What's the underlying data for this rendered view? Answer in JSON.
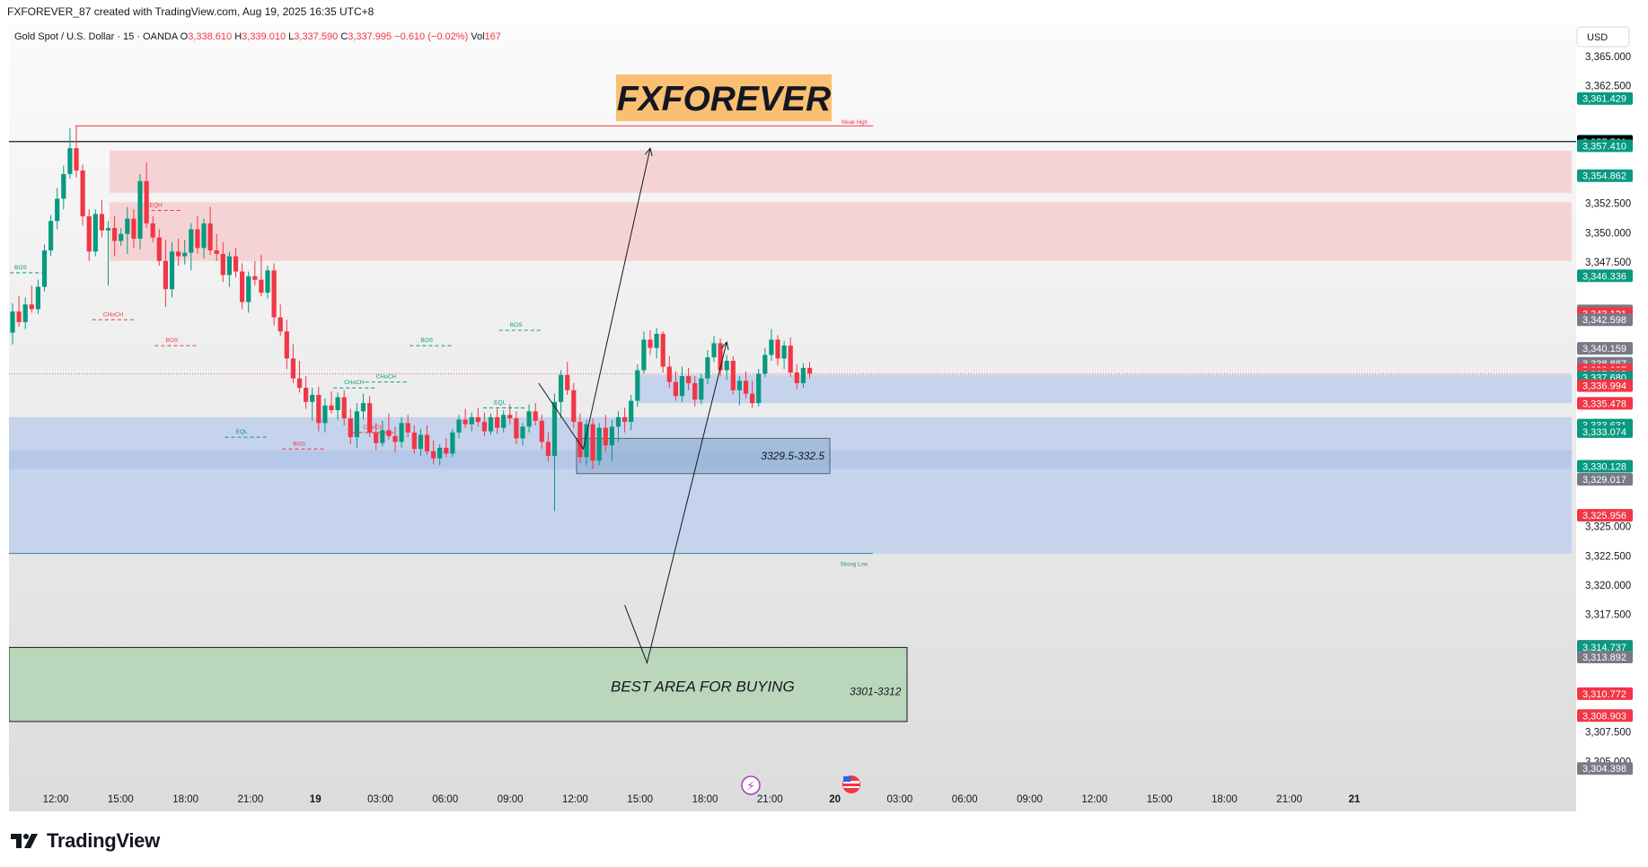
{
  "topbar": {
    "caption": "FXFOREVER_87 created with TradingView.com, Aug 19, 2025 16:35 UTC+8"
  },
  "legend": {
    "symbol": "Gold Spot / U.S. Dollar · 15 · OANDA",
    "open_label": "O",
    "open": "3,338.610",
    "high_label": "H",
    "high": "3,339.010",
    "low_label": "L",
    "low": "3,337.590",
    "close_label": "C",
    "close": "3,337.995",
    "change": "−0.610 (−0.02%)",
    "vol_label": "Vol",
    "vol": "167"
  },
  "currency_button": "USD",
  "watermark": {
    "text": "FXFOREVER",
    "bg": "#fbbf72"
  },
  "annotations": {
    "weak_high": "Weak High",
    "strong_low": "Strong Low",
    "box_label": "3329.5-332.5",
    "buy_area": "BEST AREA FOR BUYING",
    "buy_range": "3301-3312"
  },
  "structure_labels": [
    {
      "text": "BOS",
      "price": 3346.9,
      "time": 0.3,
      "color": "#089981"
    },
    {
      "text": "CHoCH",
      "price": 3342.9,
      "time": 14.2,
      "color": "#f23645"
    },
    {
      "text": "EQH",
      "price": 3352.2,
      "time": 21.5,
      "color": "#f23645"
    },
    {
      "text": "BOS",
      "price": 3340.7,
      "time": 24.0,
      "color": "#f23645"
    },
    {
      "text": "EQL",
      "price": 3332.9,
      "time": 35.0,
      "color": "#089981"
    },
    {
      "text": "BOS",
      "price": 3331.9,
      "time": 44.0,
      "color": "#f23645"
    },
    {
      "text": "CHoCH",
      "price": 3337.1,
      "time": 52.0,
      "color": "#089981"
    },
    {
      "text": "CHoCH",
      "price": 3337.6,
      "time": 57.0,
      "color": "#089981"
    },
    {
      "text": "CHoCH",
      "price": 3333.3,
      "time": 55.0,
      "color": "#f23645"
    },
    {
      "text": "BOS",
      "price": 3340.7,
      "time": 64.0,
      "color": "#089981"
    },
    {
      "text": "BOS",
      "price": 3342.0,
      "time": 78.0,
      "color": "#089981"
    },
    {
      "text": "EQL",
      "price": 3335.4,
      "time": 75.5,
      "color": "#089981"
    }
  ],
  "icons": [
    "lightning-icon",
    "us-flag-icon",
    "tradingview-logo-icon"
  ],
  "brand": "TradingView",
  "colors": {
    "bull": "#089981",
    "bear": "#f23645",
    "supply_zone": "#f5d3d4",
    "demand_zone": "#c4d2ec",
    "demand_zone_dark": "#a9c0ea",
    "buy_zone": "#bbd7bb",
    "current_price_label": "#f23645",
    "crosshair_label": "#000000"
  },
  "chart_data": {
    "type": "candlestick",
    "symbol": "XAUUSD",
    "timeframe": "15",
    "ylim": [
      3303.5,
      3365.0
    ],
    "yticks": [
      "3,365.000",
      "3,362.500",
      "3,352.500",
      "3,350.000",
      "3,347.500",
      "3,325.000",
      "3,322.500",
      "3,320.000",
      "3,317.500",
      "3,307.500",
      "3,305.000"
    ],
    "xticks": [
      "12:00",
      "15:00",
      "18:00",
      "21:00",
      "19",
      "03:00",
      "06:00",
      "09:00",
      "12:00",
      "15:00",
      "18:00",
      "21:00",
      "20",
      "03:00",
      "06:00",
      "09:00",
      "12:00",
      "15:00",
      "18:00",
      "21:00",
      "21"
    ],
    "price_labels": [
      {
        "value": "3,361.429",
        "color": "#089981"
      },
      {
        "value": "3,357.799",
        "color": "#089981"
      },
      {
        "value": "3,357.761",
        "color": "#000000"
      },
      {
        "value": "3,357.410",
        "color": "#089981"
      },
      {
        "value": "3,354.862",
        "color": "#089981"
      },
      {
        "value": "3,346.336",
        "color": "#089981"
      },
      {
        "value": "3,343.355",
        "color": "#787b86"
      },
      {
        "value": "3,343.121",
        "color": "#f23645"
      },
      {
        "value": "3,342.598",
        "color": "#787b86"
      },
      {
        "value": "3,340.159",
        "color": "#787b86"
      },
      {
        "value": "3,338.887",
        "color": "#787b86"
      },
      {
        "value": "3,338.327",
        "color": "#f23645"
      },
      {
        "value": "3,337.995",
        "color": "#f23645"
      },
      {
        "value": "3,337.680",
        "color": "#089981"
      },
      {
        "value": "3,336.994",
        "color": "#f23645"
      },
      {
        "value": "3,335.478",
        "color": "#f23645"
      },
      {
        "value": "3,333.631",
        "color": "#089981"
      },
      {
        "value": "3,333.074",
        "color": "#089981"
      },
      {
        "value": "3,330.128",
        "color": "#089981"
      },
      {
        "value": "3,329.017",
        "color": "#787b86"
      },
      {
        "value": "3,325.956",
        "color": "#f23645"
      },
      {
        "value": "3,314.810",
        "color": "#787b86"
      },
      {
        "value": "3,314.737",
        "color": "#089981"
      },
      {
        "value": "3,313.892",
        "color": "#787b86"
      },
      {
        "value": "3,310.772",
        "color": "#f23645"
      },
      {
        "value": "3,308.903",
        "color": "#f23645"
      },
      {
        "value": "3,304.398",
        "color": "#787b86"
      }
    ],
    "countdown": "09:53",
    "current_price": 3337.995,
    "horizontal_line": 3357.761,
    "zones": [
      {
        "kind": "supply",
        "low": 3353.4,
        "high": 3357.0
      },
      {
        "kind": "supply",
        "low": 3347.6,
        "high": 3352.6
      },
      {
        "kind": "demand",
        "low": 3335.5,
        "high": 3337.9
      },
      {
        "kind": "demand",
        "low": 3322.7,
        "high": 3334.3
      },
      {
        "kind": "demand",
        "low": 3329.9,
        "high": 3331.5
      },
      {
        "kind": "entry_box",
        "low": 3329.5,
        "high": 3332.5
      },
      {
        "kind": "buy",
        "low": 3301,
        "high": 3312
      }
    ],
    "projection_points": [
      [
        82.5,
        3337.2
      ],
      [
        89.5,
        3331.6
      ],
      [
        100.0,
        3357.2
      ],
      [
        96.0,
        3318.3
      ],
      [
        99.5,
        3313.4
      ],
      [
        112.0,
        3340.7
      ]
    ],
    "candles": [
      [
        3341.5,
        3344.0,
        3340.5,
        3343.3
      ],
      [
        3343.3,
        3344.6,
        3342.0,
        3342.4
      ],
      [
        3342.4,
        3344.5,
        3341.8,
        3343.9
      ],
      [
        3343.9,
        3345.5,
        3343.2,
        3343.5
      ],
      [
        3343.5,
        3346.0,
        3343.1,
        3345.4
      ],
      [
        3345.4,
        3349.0,
        3345.0,
        3348.5
      ],
      [
        3348.5,
        3351.5,
        3348.0,
        3351.0
      ],
      [
        3351.0,
        3353.8,
        3350.3,
        3352.9
      ],
      [
        3352.9,
        3355.7,
        3352.0,
        3355.0
      ],
      [
        3355.0,
        3358.9,
        3354.6,
        3357.2
      ],
      [
        3357.2,
        3359.1,
        3354.7,
        3355.3
      ],
      [
        3355.3,
        3355.8,
        3350.6,
        3351.4
      ],
      [
        3351.4,
        3352.0,
        3347.6,
        3348.4
      ],
      [
        3348.4,
        3352.0,
        3348.0,
        3351.6
      ],
      [
        3351.6,
        3352.8,
        3349.6,
        3350.2
      ],
      [
        3350.2,
        3351.0,
        3345.5,
        3350.4
      ],
      [
        3350.4,
        3351.4,
        3348.0,
        3349.3
      ],
      [
        3349.3,
        3350.4,
        3348.9,
        3349.9
      ],
      [
        3349.9,
        3352.2,
        3348.2,
        3351.2
      ],
      [
        3351.2,
        3352.0,
        3348.7,
        3349.5
      ],
      [
        3349.5,
        3355.0,
        3348.6,
        3354.4
      ],
      [
        3354.4,
        3356.0,
        3350.4,
        3350.8
      ],
      [
        3350.8,
        3351.4,
        3349.2,
        3349.6
      ],
      [
        3349.6,
        3350.3,
        3347.2,
        3347.6
      ],
      [
        3347.6,
        3349.4,
        3343.7,
        3345.2
      ],
      [
        3345.2,
        3349.2,
        3344.5,
        3348.4
      ],
      [
        3348.4,
        3349.5,
        3347.2,
        3348.0
      ],
      [
        3348.0,
        3349.4,
        3347.3,
        3348.3
      ],
      [
        3348.3,
        3350.8,
        3346.8,
        3350.3
      ],
      [
        3350.3,
        3351.4,
        3348.2,
        3348.7
      ],
      [
        3348.7,
        3351.2,
        3347.8,
        3350.8
      ],
      [
        3350.8,
        3352.2,
        3348.1,
        3348.5
      ],
      [
        3348.5,
        3349.9,
        3347.6,
        3348.2
      ],
      [
        3348.2,
        3349.2,
        3345.8,
        3346.4
      ],
      [
        3346.4,
        3348.4,
        3345.4,
        3348.0
      ],
      [
        3348.0,
        3348.7,
        3346.2,
        3346.7
      ],
      [
        3346.7,
        3347.4,
        3343.5,
        3344.1
      ],
      [
        3344.1,
        3346.7,
        3343.2,
        3346.3
      ],
      [
        3346.3,
        3347.6,
        3345.5,
        3346.0
      ],
      [
        3346.0,
        3348.1,
        3344.6,
        3344.9
      ],
      [
        3344.9,
        3347.2,
        3344.4,
        3346.8
      ],
      [
        3346.8,
        3347.4,
        3342.1,
        3342.8
      ],
      [
        3342.8,
        3343.9,
        3341.2,
        3341.6
      ],
      [
        3341.6,
        3342.6,
        3338.4,
        3339.3
      ],
      [
        3339.3,
        3340.5,
        3337.2,
        3337.6
      ],
      [
        3337.6,
        3339.1,
        3336.4,
        3336.8
      ],
      [
        3336.8,
        3337.8,
        3335.0,
        3335.6
      ],
      [
        3335.6,
        3336.8,
        3334.0,
        3336.2
      ],
      [
        3336.2,
        3336.9,
        3333.1,
        3333.8
      ],
      [
        3333.8,
        3335.9,
        3333.0,
        3335.3
      ],
      [
        3335.3,
        3336.5,
        3334.6,
        3334.9
      ],
      [
        3334.9,
        3336.4,
        3334.1,
        3336.0
      ],
      [
        3336.0,
        3336.6,
        3333.6,
        3334.2
      ],
      [
        3334.2,
        3335.0,
        3332.0,
        3332.6
      ],
      [
        3332.6,
        3335.5,
        3331.7,
        3334.8
      ],
      [
        3334.8,
        3336.3,
        3334.1,
        3335.5
      ],
      [
        3335.5,
        3336.1,
        3332.6,
        3333.0
      ],
      [
        3333.0,
        3333.8,
        3331.5,
        3332.1
      ],
      [
        3332.1,
        3334.0,
        3331.8,
        3333.2
      ],
      [
        3333.2,
        3334.6,
        3332.4,
        3332.7
      ],
      [
        3332.7,
        3333.5,
        3331.3,
        3332.2
      ],
      [
        3332.2,
        3334.3,
        3331.7,
        3333.8
      ],
      [
        3333.8,
        3334.5,
        3332.6,
        3333.0
      ],
      [
        3333.0,
        3333.6,
        3331.2,
        3331.6
      ],
      [
        3331.6,
        3333.3,
        3331.0,
        3332.8
      ],
      [
        3332.8,
        3333.6,
        3331.1,
        3331.4
      ],
      [
        3331.4,
        3332.3,
        3330.3,
        3330.8
      ],
      [
        3330.8,
        3332.0,
        3330.2,
        3331.7
      ],
      [
        3331.7,
        3332.5,
        3330.9,
        3331.2
      ],
      [
        3331.2,
        3333.3,
        3330.9,
        3333.0
      ],
      [
        3333.0,
        3334.5,
        3332.5,
        3334.1
      ],
      [
        3334.1,
        3335.0,
        3333.4,
        3333.7
      ],
      [
        3333.7,
        3334.7,
        3333.1,
        3334.3
      ],
      [
        3334.3,
        3335.1,
        3333.5,
        3333.9
      ],
      [
        3333.9,
        3334.7,
        3332.7,
        3333.1
      ],
      [
        3333.1,
        3334.6,
        3332.8,
        3334.3
      ],
      [
        3334.3,
        3335.0,
        3332.9,
        3333.4
      ],
      [
        3333.4,
        3334.9,
        3333.0,
        3334.5
      ],
      [
        3334.5,
        3335.4,
        3333.7,
        3334.2
      ],
      [
        3334.2,
        3334.8,
        3332.0,
        3332.5
      ],
      [
        3332.5,
        3333.8,
        3331.9,
        3333.5
      ],
      [
        3333.5,
        3335.4,
        3333.0,
        3334.8
      ],
      [
        3334.8,
        3335.5,
        3333.6,
        3334.0
      ],
      [
        3334.0,
        3334.5,
        3331.6,
        3332.2
      ],
      [
        3332.2,
        3333.0,
        3330.5,
        3331.0
      ],
      [
        3331.0,
        3336.3,
        3326.3,
        3335.6
      ],
      [
        3335.6,
        3338.3,
        3334.2,
        3337.9
      ],
      [
        3337.9,
        3339.0,
        3336.2,
        3336.6
      ],
      [
        3336.6,
        3337.2,
        3333.4,
        3333.9
      ],
      [
        3333.9,
        3334.6,
        3330.4,
        3330.9
      ],
      [
        3330.9,
        3334.1,
        3330.2,
        3333.7
      ],
      [
        3333.7,
        3334.2,
        3329.9,
        3330.6
      ],
      [
        3330.6,
        3333.8,
        3330.2,
        3333.4
      ],
      [
        3333.4,
        3334.5,
        3331.4,
        3331.9
      ],
      [
        3331.9,
        3334.1,
        3330.6,
        3333.5
      ],
      [
        3333.5,
        3334.8,
        3332.2,
        3334.3
      ],
      [
        3334.3,
        3335.1,
        3333.0,
        3333.9
      ],
      [
        3333.9,
        3336.2,
        3333.2,
        3335.7
      ],
      [
        3335.7,
        3338.8,
        3335.2,
        3338.3
      ],
      [
        3338.3,
        3341.6,
        3338.0,
        3340.9
      ],
      [
        3340.9,
        3341.7,
        3339.6,
        3340.2
      ],
      [
        3340.2,
        3341.9,
        3339.3,
        3341.4
      ],
      [
        3341.4,
        3341.6,
        3338.1,
        3338.6
      ],
      [
        3338.6,
        3339.5,
        3336.8,
        3337.3
      ],
      [
        3337.3,
        3338.2,
        3335.7,
        3336.1
      ],
      [
        3336.1,
        3338.6,
        3335.6,
        3337.8
      ],
      [
        3337.8,
        3338.5,
        3336.6,
        3337.2
      ],
      [
        3337.2,
        3337.8,
        3335.2,
        3335.8
      ],
      [
        3335.8,
        3338.0,
        3335.4,
        3337.6
      ],
      [
        3337.6,
        3340.0,
        3337.1,
        3339.4
      ],
      [
        3339.4,
        3341.2,
        3339.0,
        3340.6
      ],
      [
        3340.6,
        3341.0,
        3337.8,
        3338.3
      ],
      [
        3338.3,
        3339.6,
        3337.5,
        3339.1
      ],
      [
        3339.1,
        3339.5,
        3336.2,
        3336.6
      ],
      [
        3336.6,
        3337.8,
        3335.3,
        3337.4
      ],
      [
        3337.4,
        3338.2,
        3335.9,
        3336.3
      ],
      [
        3336.3,
        3337.4,
        3335.1,
        3335.5
      ],
      [
        3335.5,
        3338.4,
        3335.2,
        3338.0
      ],
      [
        3338.0,
        3340.2,
        3337.7,
        3339.6
      ],
      [
        3339.6,
        3341.8,
        3339.1,
        3340.9
      ],
      [
        3340.9,
        3341.3,
        3338.7,
        3339.3
      ],
      [
        3339.3,
        3340.8,
        3338.4,
        3340.4
      ],
      [
        3340.4,
        3341.1,
        3337.7,
        3338.1
      ],
      [
        3338.1,
        3338.8,
        3336.7,
        3337.2
      ],
      [
        3337.2,
        3338.9,
        3336.8,
        3338.5
      ],
      [
        3338.5,
        3339.0,
        3337.6,
        3337.995
      ]
    ]
  }
}
